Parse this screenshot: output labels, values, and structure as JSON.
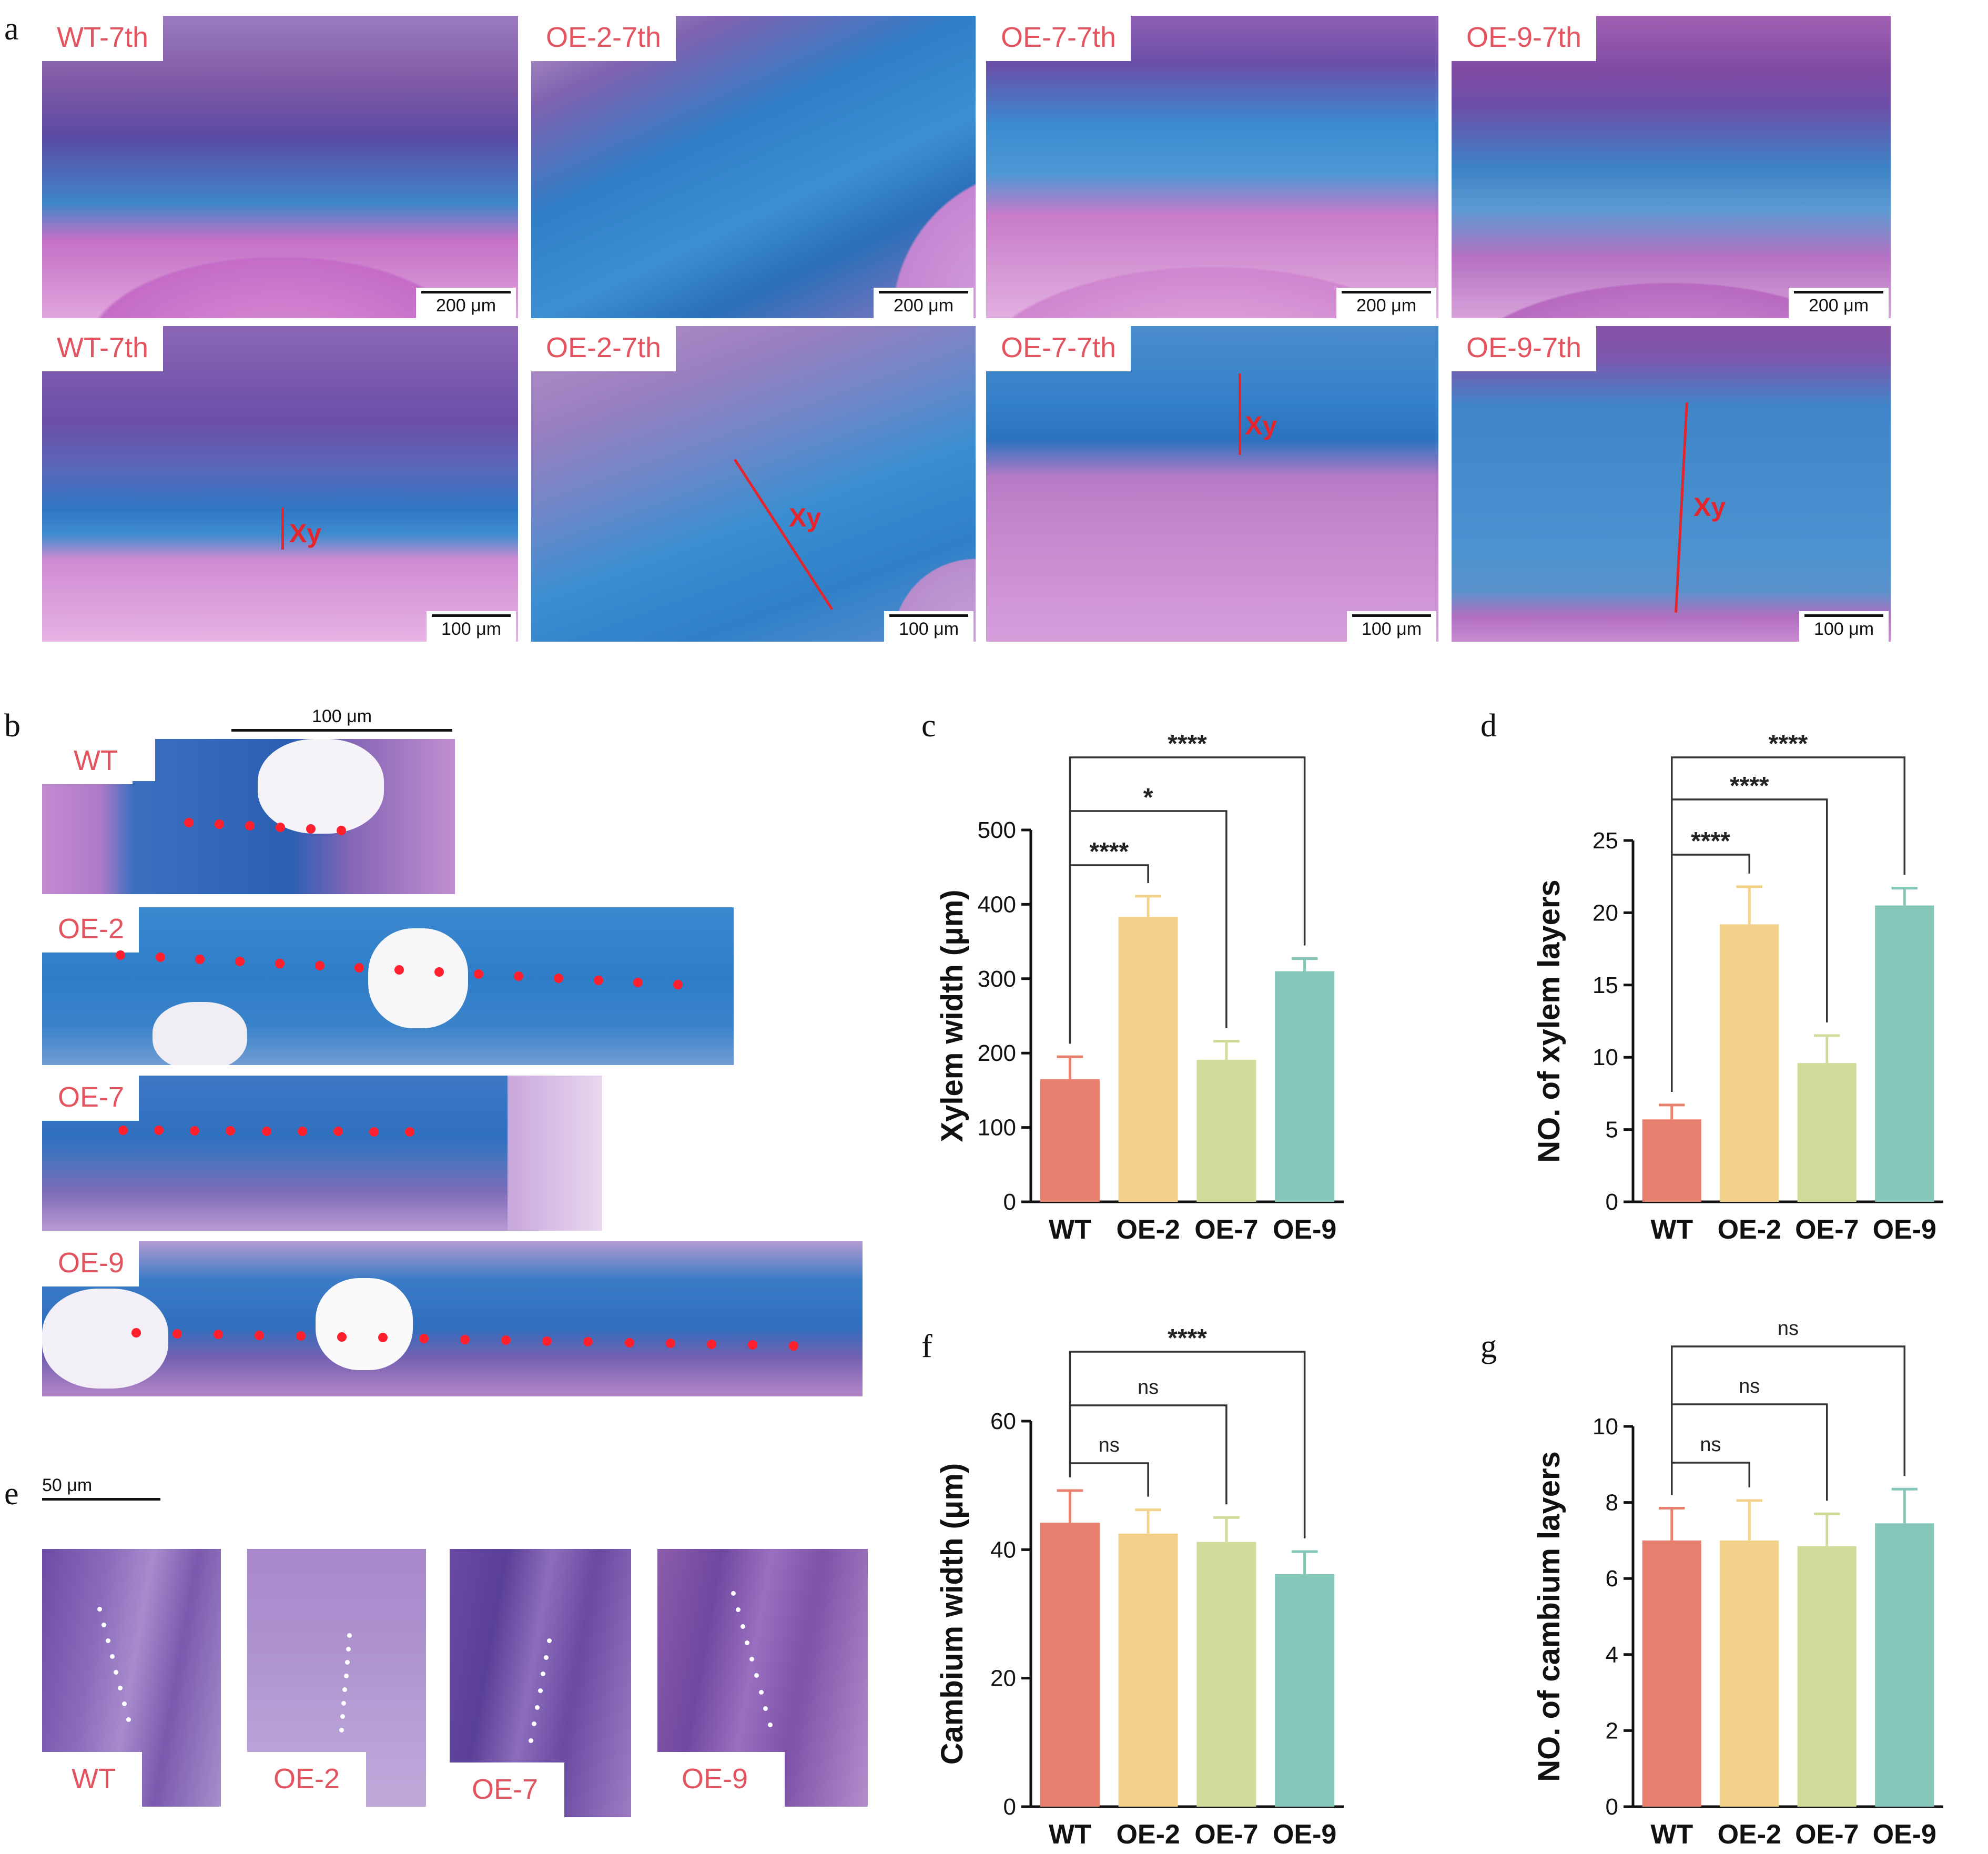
{
  "panel_a": {
    "letter": "a",
    "top_row": [
      {
        "label": "WT-7th",
        "scale": "200 μm"
      },
      {
        "label": "OE-2-7th",
        "scale": "200 μm"
      },
      {
        "label": "OE-7-7th",
        "scale": "200 μm"
      },
      {
        "label": "OE-9-7th",
        "scale": "200 μm"
      }
    ],
    "bottom_row": [
      {
        "label": "WT-7th",
        "scale": "100 μm",
        "marker": "Xy"
      },
      {
        "label": "OE-2-7th",
        "scale": "100 μm",
        "marker": "Xy"
      },
      {
        "label": "OE-7-7th",
        "scale": "100 μm",
        "marker": "Xy"
      },
      {
        "label": "OE-9-7th",
        "scale": "100 μm",
        "marker": "Xy"
      }
    ]
  },
  "panel_b": {
    "letter": "b",
    "scale": "100 μm",
    "strips": [
      {
        "label": "WT",
        "dots": 6
      },
      {
        "label": "OE-2",
        "dots": 15
      },
      {
        "label": "OE-7",
        "dots": 9
      },
      {
        "label": "OE-9",
        "dots": 17
      }
    ]
  },
  "panel_e": {
    "letter": "e",
    "scale": "50 μm",
    "images": [
      {
        "label": "WT"
      },
      {
        "label": "OE-2"
      },
      {
        "label": "OE-7"
      },
      {
        "label": "OE-9"
      }
    ]
  },
  "colors": {
    "WT": "#e8806f",
    "OE-2": "#f2d28b",
    "OE-7": "#cfdc9a",
    "OE-9": "#84c7b8",
    "label_red": "#e2545f",
    "marker_red": "#e3262d"
  },
  "chart_data": [
    {
      "id": "c",
      "letter": "c",
      "type": "bar",
      "categories": [
        "WT",
        "OE-2",
        "OE-7",
        "OE-9"
      ],
      "values": [
        165,
        383,
        191,
        310
      ],
      "errors": [
        30,
        28,
        25,
        17
      ],
      "ylabel": "Xylem width (μm)",
      "ylim": [
        0,
        500
      ],
      "yticks": [
        "0",
        "100",
        "200",
        "300",
        "400",
        "500"
      ],
      "significance": [
        {
          "from": 0,
          "to": 1,
          "label": "****"
        },
        {
          "from": 0,
          "to": 2,
          "label": "*"
        },
        {
          "from": 0,
          "to": 3,
          "label": "****"
        }
      ]
    },
    {
      "id": "d",
      "letter": "d",
      "type": "bar",
      "categories": [
        "WT",
        "OE-2",
        "OE-7",
        "OE-9"
      ],
      "values": [
        5.7,
        19.2,
        9.6,
        20.5
      ],
      "errors": [
        1.0,
        2.6,
        1.9,
        1.2
      ],
      "ylabel": "NO. of xylem layers",
      "ylim": [
        0,
        25
      ],
      "yticks": [
        "0",
        "5",
        "10",
        "15",
        "20",
        "25"
      ],
      "significance": [
        {
          "from": 0,
          "to": 1,
          "label": "****"
        },
        {
          "from": 0,
          "to": 2,
          "label": "****"
        },
        {
          "from": 0,
          "to": 3,
          "label": "****"
        }
      ]
    },
    {
      "id": "f",
      "letter": "f",
      "type": "bar",
      "categories": [
        "WT",
        "OE-2",
        "OE-7",
        "OE-9"
      ],
      "values": [
        44.2,
        42.5,
        41.2,
        36.2
      ],
      "errors": [
        5.0,
        3.7,
        3.8,
        3.5
      ],
      "ylabel": "Cambium width (μm)",
      "ylim": [
        0,
        60
      ],
      "yticks": [
        "0",
        "20",
        "40",
        "60"
      ],
      "significance": [
        {
          "from": 0,
          "to": 1,
          "label": "ns"
        },
        {
          "from": 0,
          "to": 2,
          "label": "ns"
        },
        {
          "from": 0,
          "to": 3,
          "label": "****"
        }
      ]
    },
    {
      "id": "g",
      "letter": "g",
      "type": "bar",
      "categories": [
        "WT",
        "OE-2",
        "OE-7",
        "OE-9"
      ],
      "values": [
        7.0,
        7.0,
        6.85,
        7.45
      ],
      "errors": [
        0.85,
        1.05,
        0.85,
        0.9
      ],
      "ylabel": "NO. of cambium layers",
      "ylim": [
        0,
        10
      ],
      "yticks": [
        "0",
        "2",
        "4",
        "6",
        "8",
        "10"
      ],
      "significance": [
        {
          "from": 0,
          "to": 1,
          "label": "ns"
        },
        {
          "from": 0,
          "to": 2,
          "label": "ns"
        },
        {
          "from": 0,
          "to": 3,
          "label": "ns"
        }
      ]
    }
  ]
}
